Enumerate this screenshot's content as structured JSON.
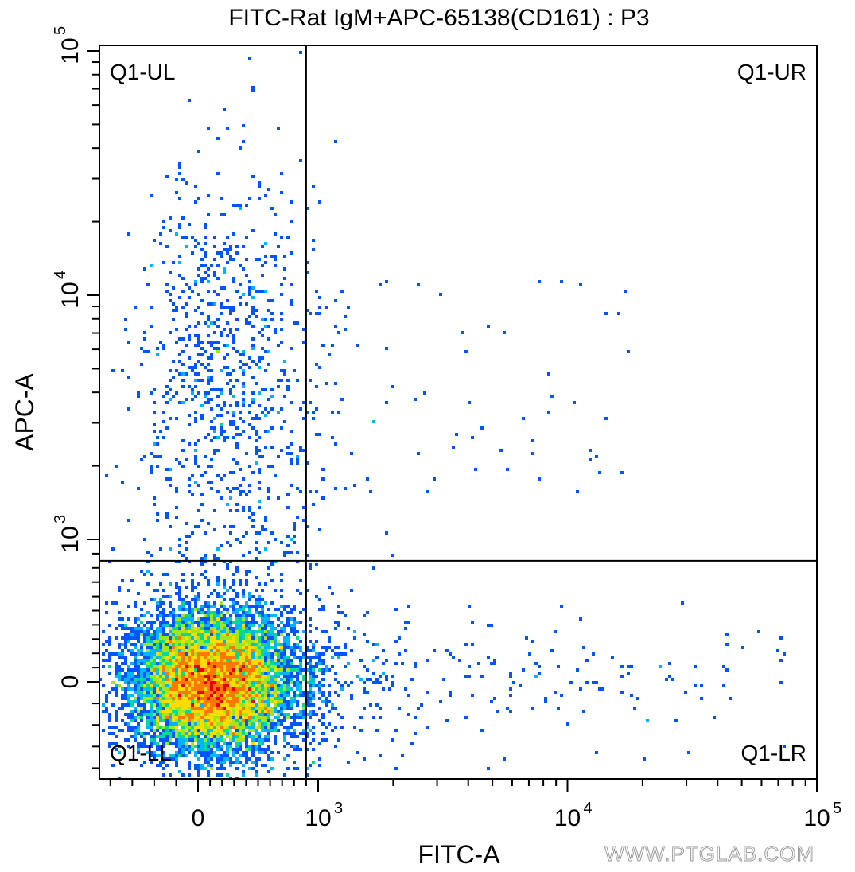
{
  "chart_data": {
    "type": "scatter",
    "subtype": "flow-cytometry-density-dot-plot",
    "title": "FITC-Rat IgM+APC-65138(CD161) : P3",
    "xlabel": "FITC-A",
    "ylabel": "APC-A",
    "x_scale": "biexponential",
    "y_scale": "biexponential",
    "x_ticks": [
      {
        "value": 0,
        "base": "0",
        "exp": ""
      },
      {
        "value": 1000,
        "base": "10",
        "exp": "3"
      },
      {
        "value": 10000,
        "base": "10",
        "exp": "4"
      },
      {
        "value": 100000,
        "base": "10",
        "exp": "5"
      }
    ],
    "y_ticks": [
      {
        "value": 0,
        "base": "0",
        "exp": ""
      },
      {
        "value": 1000,
        "base": "10",
        "exp": "3"
      },
      {
        "value": 10000,
        "base": "10",
        "exp": "4"
      },
      {
        "value": 100000,
        "base": "10",
        "exp": "5"
      }
    ],
    "xlim": [
      -450,
      100000
    ],
    "ylim": [
      -450,
      100000
    ],
    "gates": {
      "x": 900,
      "y": 850
    },
    "quadrants": [
      "Q1-UL",
      "Q1-UR",
      "Q1-LL",
      "Q1-LR"
    ],
    "populations": [
      {
        "name": "main-cluster",
        "quadrant": "Q1-LL",
        "x_center": 120,
        "y_center": 0,
        "density": "high"
      },
      {
        "name": "apc-positive-cluster",
        "quadrant": "Q1-UL",
        "x_center": 200,
        "y_center": 7000,
        "density": "low"
      }
    ],
    "colormap": [
      "#0000c8",
      "#0055ff",
      "#00b4ff",
      "#00dc96",
      "#a0e61e",
      "#ffdc00",
      "#ff7800",
      "#e60000"
    ]
  },
  "watermark": "WWW.PTGLAB.COM"
}
